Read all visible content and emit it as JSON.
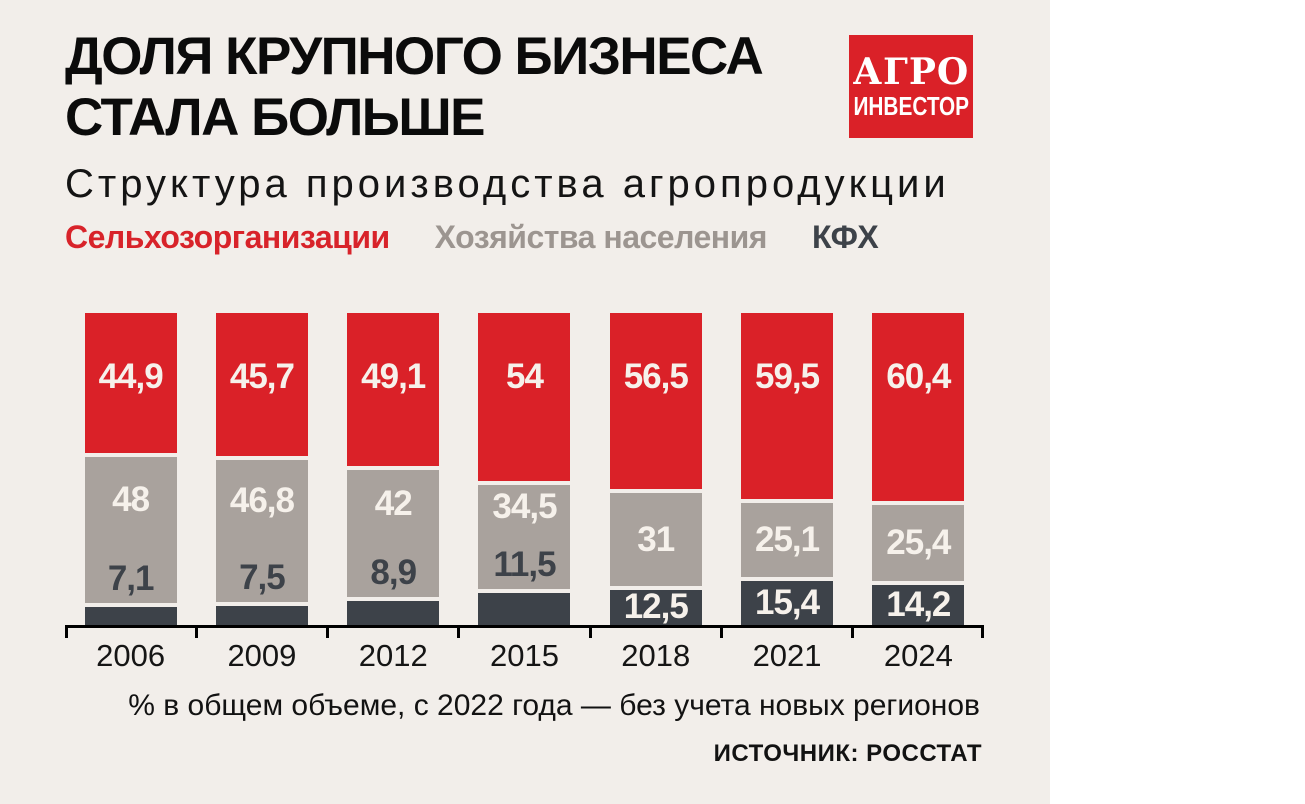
{
  "theme": {
    "panel_bg": "#f2eeea",
    "page_bg": "#ffffff",
    "red": "#da2128",
    "gray": "#a9a29d",
    "dark": "#3d4249",
    "label_light": "#f6f1eb",
    "text": "#0e0e0e",
    "legend_gray": "#9c9590",
    "axis": "#000000"
  },
  "header": {
    "title_line1": "ДОЛЯ КРУПНОГО БИЗНЕСА",
    "title_line2": "СТАЛА БОЛЬШЕ",
    "subtitle": "Структура производства агропродукции",
    "logo": {
      "line1": "АГРО",
      "line2": "ИНВЕСТОР",
      "background": "#da2128",
      "color": "#ffffff"
    }
  },
  "legend": [
    {
      "key": "selhoz",
      "label": "Сельхозорганизации",
      "color": "#d8232a"
    },
    {
      "key": "households",
      "label": "Хозяйства населения",
      "color": "#9c9590"
    },
    {
      "key": "kfh",
      "label": "КФХ",
      "color": "#3d4249"
    }
  ],
  "chart_data": {
    "type": "bar",
    "stacked": true,
    "categories": [
      "2006",
      "2009",
      "2012",
      "2015",
      "2018",
      "2021",
      "2024"
    ],
    "series": [
      {
        "key": "selhoz",
        "name": "Сельхозорганизации",
        "color": "#da2128",
        "values": [
          44.9,
          45.7,
          49.1,
          54,
          56.5,
          59.5,
          60.4
        ],
        "labels": [
          "44,9",
          "45,7",
          "49,1",
          "54",
          "56,5",
          "59,5",
          "60,4"
        ]
      },
      {
        "key": "households",
        "name": "Хозяйства населения",
        "color": "#a9a29d",
        "values": [
          48,
          46.8,
          42,
          34.5,
          31,
          25.1,
          25.4
        ],
        "labels": [
          "48",
          "46,8",
          "42",
          "34,5",
          "31",
          "25,1",
          "25,4"
        ]
      },
      {
        "key": "kfh",
        "name": "КФХ",
        "color": "#3d4249",
        "values": [
          7.1,
          7.5,
          8.9,
          11.5,
          12.5,
          15.4,
          14.2
        ],
        "labels": [
          "7,1",
          "7,5",
          "8,9",
          "11,5",
          "12,5",
          "15,4",
          "14,2"
        ],
        "label_inside": [
          false,
          false,
          false,
          false,
          true,
          true,
          true
        ]
      }
    ],
    "ylim": [
      0,
      100
    ],
    "ylabel": "%",
    "xlabel": "",
    "legend_position": "top",
    "grid": false
  },
  "footer": {
    "note": "% в общем объеме, с 2022 года — без учета новых регионов",
    "source": "ИСТОЧНИК: РОССТАТ"
  }
}
